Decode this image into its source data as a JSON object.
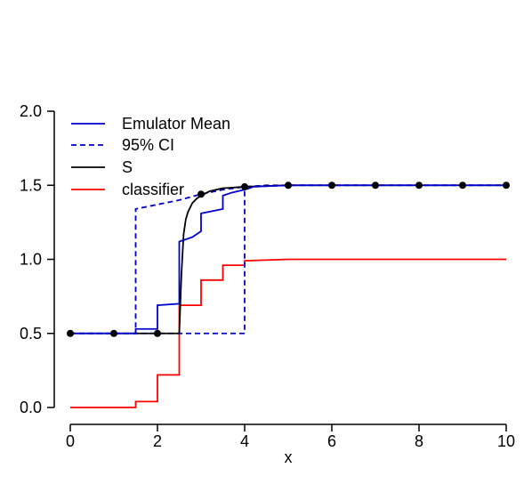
{
  "chart_data": {
    "type": "line",
    "title": "",
    "xlabel": "x",
    "ylabel": "",
    "xlim": [
      0,
      10
    ],
    "ylim": [
      0,
      2
    ],
    "x_ticks": [
      0,
      2,
      4,
      6,
      8,
      10
    ],
    "x_tick_labels": [
      "0",
      "2",
      "4",
      "6",
      "8",
      "10"
    ],
    "y_ticks": [
      0,
      0.5,
      1,
      1.5,
      2
    ],
    "y_tick_labels": [
      "0.0",
      "0.5",
      "1.0",
      "1.5",
      "2.0"
    ],
    "grid": false,
    "legend_position": "top-left",
    "legend": [
      {
        "label": "Emulator Mean",
        "color": "#0000cc",
        "style": "solid"
      },
      {
        "label": "95% CI",
        "color": "#0000cc",
        "style": "dashed"
      },
      {
        "label": "S",
        "color": "#000000",
        "style": "solid"
      },
      {
        "label": "classifier",
        "color": "#ff0000",
        "style": "solid"
      }
    ],
    "series": [
      {
        "name": "Emulator Mean",
        "color": "#0000cc",
        "style": "solid",
        "x": [
          0,
          1.5,
          1.5,
          2,
          2,
          2.5,
          2.5,
          2.6,
          2.7,
          2.8,
          2.9,
          3,
          3,
          3.5,
          3.5,
          3.7,
          3.85,
          4,
          4.2,
          5,
          6,
          7,
          8,
          9,
          10
        ],
        "y": [
          0.5,
          0.5,
          0.53,
          0.53,
          0.69,
          0.7,
          1.12,
          1.13,
          1.14,
          1.15,
          1.17,
          1.19,
          1.31,
          1.34,
          1.43,
          1.45,
          1.46,
          1.47,
          1.49,
          1.5,
          1.5,
          1.5,
          1.5,
          1.5,
          1.5
        ]
      },
      {
        "name": "95% CI lower",
        "color": "#0000cc",
        "style": "dashed",
        "x": [
          0,
          4,
          4,
          4.2,
          5,
          6,
          7,
          8,
          9,
          10
        ],
        "y": [
          0.5,
          0.5,
          1.47,
          1.49,
          1.5,
          1.5,
          1.5,
          1.5,
          1.5,
          1.5
        ]
      },
      {
        "name": "95% CI upper",
        "color": "#0000cc",
        "style": "dashed",
        "x": [
          0,
          1.5,
          1.5,
          2.5,
          3,
          3.5,
          4,
          4.5,
          5,
          6,
          7,
          8,
          9,
          10
        ],
        "y": [
          0.5,
          0.5,
          1.34,
          1.4,
          1.44,
          1.47,
          1.49,
          1.5,
          1.5,
          1.5,
          1.5,
          1.5,
          1.5,
          1.5
        ]
      },
      {
        "name": "S",
        "color": "#000000",
        "style": "solid",
        "x": [
          0,
          2,
          2.5,
          2.55,
          2.6,
          2.65,
          2.7,
          2.8,
          2.9,
          3,
          3.2,
          3.5,
          4,
          5,
          6,
          7,
          8,
          9,
          10
        ],
        "y": [
          0.5,
          0.5,
          0.5,
          0.9,
          1.17,
          1.27,
          1.32,
          1.38,
          1.41,
          1.43,
          1.46,
          1.48,
          1.49,
          1.5,
          1.5,
          1.5,
          1.5,
          1.5,
          1.5
        ]
      },
      {
        "name": "classifier",
        "color": "#ff0000",
        "style": "solid",
        "x": [
          0,
          1.5,
          1.5,
          2,
          2,
          2.5,
          2.5,
          3,
          3,
          3.5,
          3.5,
          4,
          4,
          5,
          10
        ],
        "y": [
          0,
          0,
          0.04,
          0.04,
          0.22,
          0.22,
          0.69,
          0.69,
          0.86,
          0.86,
          0.96,
          0.96,
          0.99,
          1.0,
          1.0
        ]
      }
    ],
    "points": {
      "color": "#000000",
      "x": [
        0,
        1,
        2,
        3,
        4,
        5,
        6,
        7,
        8,
        9,
        10
      ],
      "y": [
        0.5,
        0.5,
        0.5,
        1.44,
        1.49,
        1.5,
        1.5,
        1.5,
        1.5,
        1.5,
        1.5
      ]
    }
  }
}
